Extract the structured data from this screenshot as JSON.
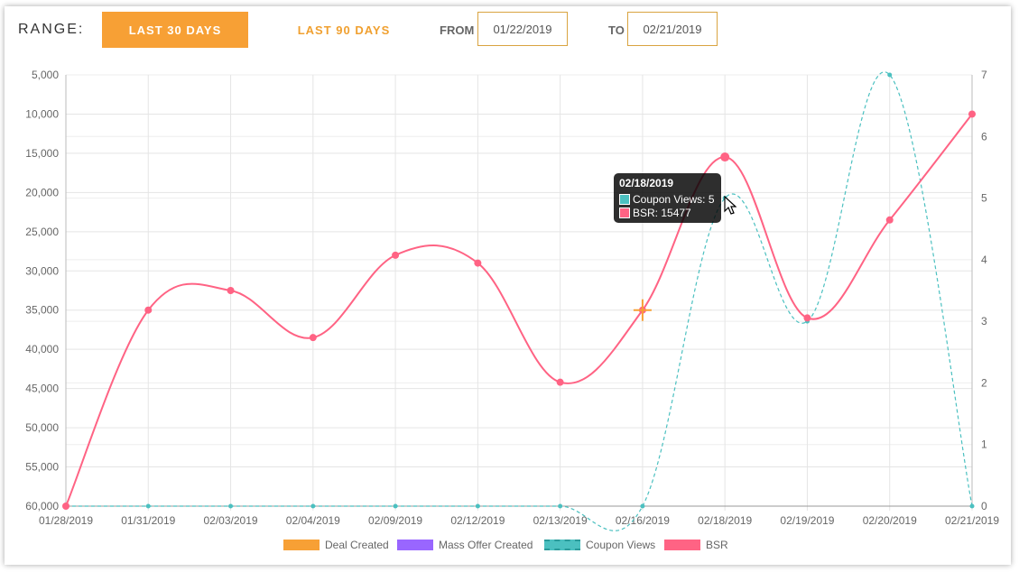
{
  "toolbar": {
    "range_label": "RANGE:",
    "last30_label": "LAST 30 DAYS",
    "last90_label": "LAST 90 DAYS",
    "from_label": "FROM",
    "from_value": "01/22/2019",
    "to_label": "TO",
    "to_value": "02/21/2019"
  },
  "colors": {
    "deal": "#f7a035",
    "mass_offer": "#9966ff",
    "coupon": "#4bc0c0",
    "bsr": "#ff6384"
  },
  "tooltip": {
    "title": "02/18/2019",
    "coupon_line": "Coupon Views: 5",
    "bsr_line": "BSR: 15477"
  },
  "chart_data": {
    "type": "line",
    "categories": [
      "01/28/2019",
      "01/31/2019",
      "02/03/2019",
      "02/04/2019",
      "02/09/2019",
      "02/12/2019",
      "02/13/2019",
      "02/16/2019",
      "02/18/2019",
      "02/19/2019",
      "02/20/2019",
      "02/21/2019"
    ],
    "series": [
      {
        "name": "Deal Created",
        "axis": "left",
        "points": [
          {
            "category": "02/16/2019",
            "value": 35000
          }
        ]
      },
      {
        "name": "Mass Offer Created",
        "axis": "left",
        "points": []
      },
      {
        "name": "Coupon Views",
        "axis": "right",
        "values": [
          0,
          0,
          0,
          0,
          0,
          0,
          0,
          0,
          5,
          3,
          7,
          0
        ]
      },
      {
        "name": "BSR",
        "axis": "left",
        "values": [
          60000,
          35000,
          32500,
          38500,
          28000,
          29000,
          44200,
          35000,
          15477,
          36000,
          23500,
          10000
        ]
      }
    ],
    "y_left": {
      "reversed": true,
      "ylim": [
        5000,
        60000
      ],
      "ticks": [
        "5,000",
        "10,000",
        "15,000",
        "20,000",
        "25,000",
        "30,000",
        "35,000",
        "40,000",
        "45,000",
        "50,000",
        "55,000",
        "60,000"
      ]
    },
    "y_right": {
      "ylim": [
        0,
        7
      ],
      "ticks": [
        "0",
        "1",
        "2",
        "3",
        "4",
        "5",
        "6",
        "7"
      ]
    },
    "legend_position": "bottom",
    "grid": true
  }
}
